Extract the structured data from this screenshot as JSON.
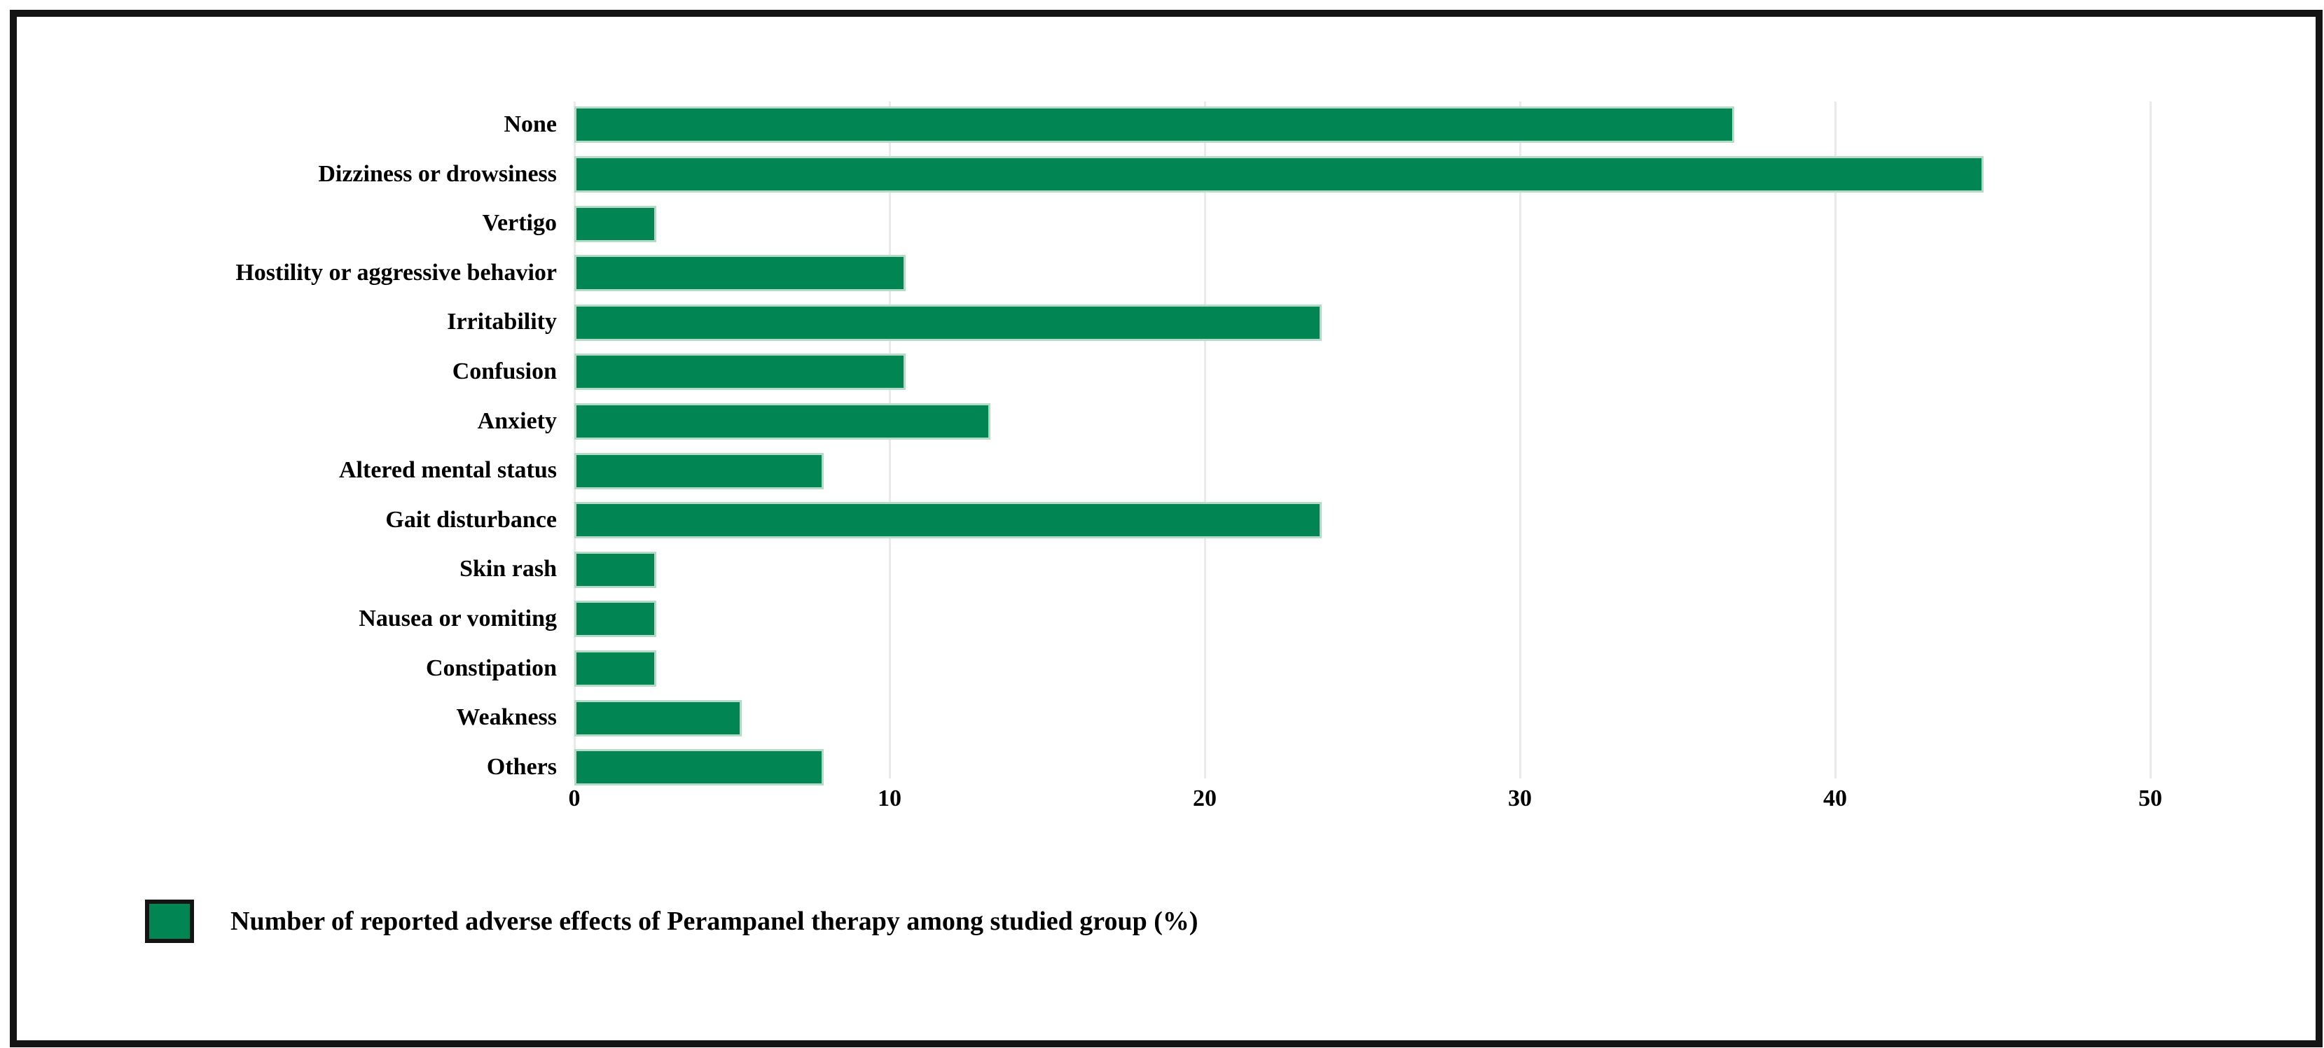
{
  "figure": {
    "background_color": "#ffffff",
    "frame_color": "#141414"
  },
  "chart_data": {
    "type": "bar",
    "orientation": "horizontal",
    "title": "",
    "xlabel": "",
    "ylabel": "",
    "categories": [
      "None",
      "Dizziness or drowsiness",
      "Vertigo",
      "Hostility or aggressive behavior",
      "Irritability",
      "Confusion",
      "Anxiety",
      "Altered mental status",
      "Gait disturbance",
      "Skin rash",
      "Nausea or vomiting",
      "Constipation",
      "Weakness",
      "Others"
    ],
    "values": [
      36.8,
      44.7,
      2.6,
      10.5,
      23.7,
      10.5,
      13.2,
      7.9,
      23.7,
      2.6,
      2.6,
      2.6,
      5.3,
      7.9
    ],
    "x_ticks": [
      0,
      10,
      20,
      30,
      40,
      50
    ],
    "xlim": [
      0,
      52
    ],
    "grid": true,
    "gridline_color": "#eaeaea",
    "bar_color": "#008553",
    "bar_border_color": "#b4dac8",
    "legend": "Number of reported adverse effects of Perampanel therapy among studied group (%)",
    "legend_position": "bottom-left"
  }
}
